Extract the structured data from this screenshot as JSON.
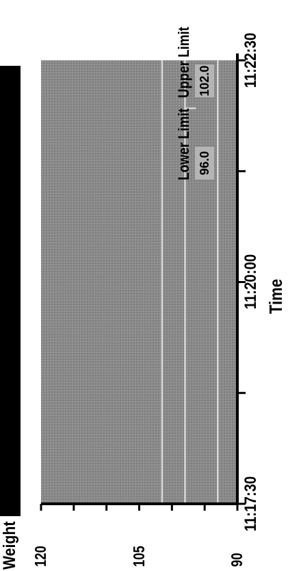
{
  "panel": {
    "weight_label": "Weight",
    "time_label": "Time"
  },
  "limits": {
    "upper_label": "Upper Limit",
    "upper_value": "102.0",
    "lower_label": "Lower Limit",
    "lower_value": "96.0"
  },
  "chart_data": {
    "type": "line",
    "ylabel": "Weight",
    "xlabel": "Time",
    "ylim": [
      90,
      120
    ],
    "y_ticks": [
      "120",
      "105",
      "90"
    ],
    "x_ticks": [
      "11:17:30",
      "11:20:00",
      "11:22:30"
    ],
    "upper_limit": 102.0,
    "lower_limit": 96.0,
    "reference_levels": [
      93,
      98,
      101.5
    ],
    "plot_background": "#8c8c8c",
    "line_color": "#d9d9d9"
  }
}
